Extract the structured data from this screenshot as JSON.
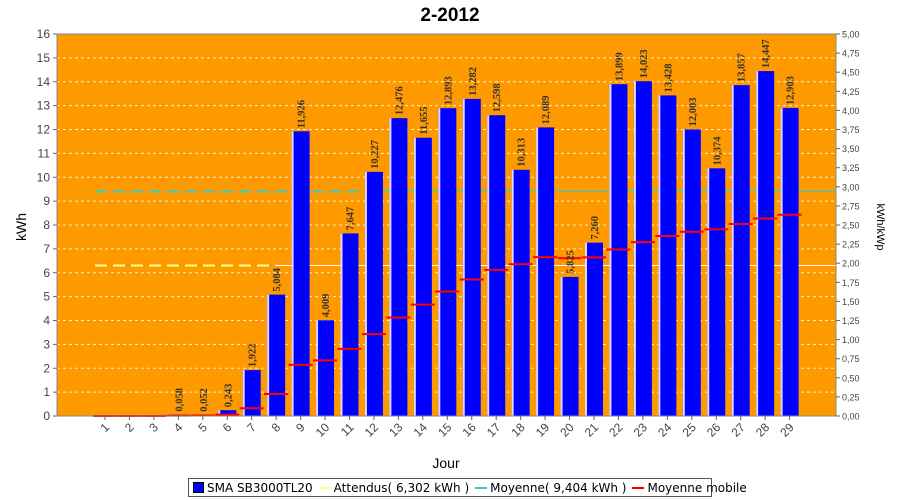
{
  "chart_data": {
    "type": "bar",
    "title": "2-2012",
    "xlabel": "Jour",
    "ylabel": "kWh",
    "y2label": "kWh/kWp",
    "ylim": [
      0,
      16
    ],
    "y2lim": [
      0,
      5
    ],
    "yticks": [
      "0",
      "1",
      "2",
      "3",
      "4",
      "5",
      "6",
      "7",
      "8",
      "9",
      "10",
      "11",
      "12",
      "13",
      "14",
      "15",
      "16"
    ],
    "y2ticks": [
      "0,00",
      "0,25",
      "0,50",
      "0,75",
      "1,00",
      "1,25",
      "1,50",
      "1,75",
      "2,00",
      "2,25",
      "2,50",
      "2,75",
      "3,00",
      "3,25",
      "3,50",
      "3,75",
      "4,00",
      "4,25",
      "4,50",
      "4,75",
      "5,00"
    ],
    "categories": [
      "1",
      "2",
      "3",
      "4",
      "5",
      "6",
      "7",
      "8",
      "9",
      "10",
      "11",
      "12",
      "13",
      "14",
      "15",
      "16",
      "17",
      "18",
      "19",
      "20",
      "21",
      "22",
      "23",
      "24",
      "25",
      "26",
      "27",
      "28",
      "29"
    ],
    "values": [
      0,
      0,
      0,
      0.058,
      0.052,
      0.243,
      1.922,
      5.084,
      11.926,
      4.009,
      7.647,
      10.227,
      12.476,
      11.655,
      12.893,
      13.282,
      12.598,
      10.313,
      12.089,
      5.825,
      7.26,
      13.899,
      14.023,
      13.428,
      12.003,
      10.374,
      13.857,
      14.447,
      12.903
    ],
    "value_labels": [
      "",
      "",
      "",
      "0,058",
      "0,052",
      "0,243",
      "1,922",
      "5,084",
      "11,926",
      "4,009",
      "7,647",
      "10,227",
      "12,476",
      "11,655",
      "12,893",
      "13,282",
      "12,598",
      "10,313",
      "12,089",
      "5,825",
      "7,260",
      "13,899",
      "14,023",
      "13,428",
      "12,003",
      "10,374",
      "13,857",
      "14,447",
      "12,903"
    ],
    "moving_average": [
      0,
      0,
      0,
      0.015,
      0.022,
      0.059,
      0.325,
      0.92,
      2.143,
      2.329,
      2.812,
      3.43,
      4.126,
      4.664,
      5.213,
      5.717,
      6.122,
      6.355,
      6.657,
      6.615,
      6.646,
      6.976,
      7.282,
      7.538,
      7.716,
      7.818,
      8.042,
      8.271,
      8.43
    ],
    "attendus": 6.302,
    "moyenne": 9.404,
    "grid": true,
    "legend_position": "bottom",
    "colors": {
      "plot_bg": "#ff9900",
      "bar": "#0000ff",
      "attendus": "#ffff99",
      "moyenne": "#33cccc",
      "moving_average": "#ff0000"
    },
    "legend": [
      {
        "name": "SMA SB3000TL20",
        "swatch": "box",
        "color": "#0000ff"
      },
      {
        "name": "Attendus( 6,302 kWh )",
        "swatch": "line",
        "color": "#ffff99"
      },
      {
        "name": "Moyenne( 9,404 kWh )",
        "swatch": "line",
        "color": "#33cccc"
      },
      {
        "name": "Moyenne mobile",
        "swatch": "line",
        "color": "#ff0000"
      }
    ]
  }
}
